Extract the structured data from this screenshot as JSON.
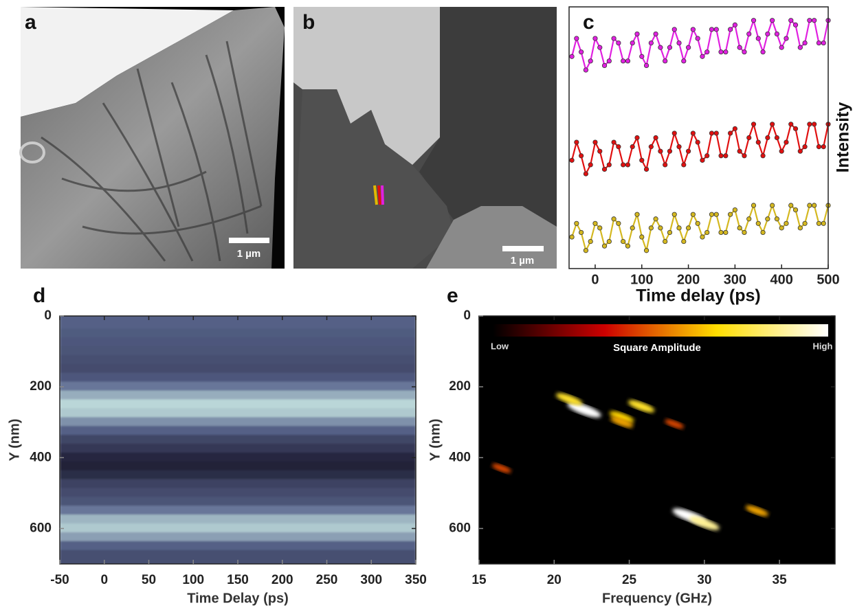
{
  "images": [
    {
      "label": "a",
      "scale_bar": "1 µm"
    },
    {
      "label": "b",
      "scale_bar": "1 µm"
    }
  ],
  "chart_data": [
    {
      "type": "line",
      "panel_label": "c",
      "x_label": "Time delay (ps)",
      "y_label": "Intensity",
      "x": [
        -50,
        -40,
        -30,
        -20,
        -10,
        0,
        10,
        20,
        30,
        40,
        50,
        60,
        70,
        80,
        90,
        100,
        110,
        120,
        130,
        140,
        150,
        160,
        170,
        180,
        190,
        200,
        210,
        220,
        230,
        240,
        250,
        260,
        270,
        280,
        290,
        300,
        310,
        320,
        330,
        340,
        350,
        360,
        370,
        380,
        390,
        400,
        410,
        420,
        430,
        440,
        450,
        460,
        470,
        480,
        490,
        500
      ],
      "xlim": [
        -56,
        500
      ],
      "xticks": [
        0,
        100,
        200,
        300,
        400,
        500
      ],
      "ylim": [
        -0.4,
        5.4
      ],
      "series": [
        {
          "color": "#e020e0",
          "values": [
            4.3,
            4.7,
            4.4,
            4.0,
            4.2,
            4.7,
            4.5,
            4.1,
            4.2,
            4.7,
            4.6,
            4.2,
            4.2,
            4.6,
            4.8,
            4.3,
            4.1,
            4.6,
            4.8,
            4.5,
            4.2,
            4.5,
            4.9,
            4.6,
            4.2,
            4.5,
            4.9,
            4.7,
            4.3,
            4.4,
            4.9,
            4.9,
            4.4,
            4.4,
            4.9,
            5.0,
            4.5,
            4.4,
            4.8,
            5.1,
            4.7,
            4.4,
            4.8,
            5.1,
            4.8,
            4.5,
            4.7,
            5.1,
            5.0,
            4.5,
            4.6,
            5.1,
            5.1,
            4.6,
            4.6,
            5.1
          ]
        },
        {
          "color": "#e01010",
          "values": [
            2.0,
            2.4,
            2.1,
            1.7,
            1.9,
            2.4,
            2.2,
            1.8,
            1.9,
            2.4,
            2.3,
            1.9,
            1.9,
            2.3,
            2.5,
            2.0,
            1.8,
            2.3,
            2.5,
            2.2,
            1.9,
            2.2,
            2.6,
            2.3,
            1.9,
            2.2,
            2.6,
            2.4,
            2.0,
            2.1,
            2.6,
            2.6,
            2.1,
            2.1,
            2.6,
            2.7,
            2.2,
            2.1,
            2.5,
            2.8,
            2.4,
            2.1,
            2.5,
            2.8,
            2.5,
            2.2,
            2.4,
            2.8,
            2.7,
            2.2,
            2.3,
            2.8,
            2.8,
            2.3,
            2.3,
            2.8
          ]
        },
        {
          "color": "#d4b820",
          "values": [
            0.3,
            0.6,
            0.4,
            0.0,
            0.2,
            0.6,
            0.5,
            0.1,
            0.2,
            0.7,
            0.6,
            0.2,
            0.1,
            0.5,
            0.8,
            0.3,
            0.0,
            0.5,
            0.7,
            0.5,
            0.2,
            0.4,
            0.8,
            0.5,
            0.2,
            0.5,
            0.8,
            0.6,
            0.3,
            0.4,
            0.8,
            0.8,
            0.4,
            0.4,
            0.8,
            0.9,
            0.5,
            0.4,
            0.7,
            1.0,
            0.6,
            0.4,
            0.7,
            1.0,
            0.7,
            0.5,
            0.6,
            1.0,
            0.9,
            0.5,
            0.6,
            1.0,
            1.0,
            0.6,
            0.6,
            1.0
          ]
        }
      ]
    },
    {
      "type": "heatmap",
      "panel_label": "d",
      "x_label": "Time Delay (ps)",
      "y_label": "Y (nm)",
      "xlim": [
        -50,
        350
      ],
      "xticks": [
        -50,
        0,
        50,
        100,
        150,
        200,
        250,
        300,
        350
      ],
      "ylim": [
        0,
        700
      ],
      "yticks": [
        0,
        200,
        400,
        600
      ],
      "invert_y": true,
      "colormap": [
        "#141428",
        "#5c6890",
        "#d2f2ea"
      ],
      "y": [
        0,
        25,
        50,
        75,
        100,
        125,
        150,
        175,
        200,
        225,
        250,
        275,
        300,
        325,
        350,
        375,
        400,
        425,
        450,
        475,
        500,
        525,
        550,
        575,
        600,
        625,
        650,
        675,
        700
      ],
      "values": [
        0.45,
        0.45,
        0.42,
        0.4,
        0.38,
        0.35,
        0.33,
        0.4,
        0.55,
        0.75,
        0.9,
        0.85,
        0.65,
        0.45,
        0.3,
        0.22,
        0.12,
        0.08,
        0.15,
        0.28,
        0.33,
        0.38,
        0.55,
        0.78,
        0.85,
        0.7,
        0.45,
        0.35,
        0.35
      ]
    },
    {
      "type": "heatmap",
      "panel_label": "e",
      "x_label": "Frequency (GHz)",
      "y_label": "Y (nm)",
      "xlim": [
        15,
        38.7
      ],
      "xticks": [
        15,
        20,
        25,
        30,
        35
      ],
      "ylim": [
        0,
        700
      ],
      "yticks": [
        0,
        200,
        400,
        600
      ],
      "invert_y": true,
      "colormap": [
        "#000000",
        "#cc0000",
        "#ffdd00",
        "#ffffff"
      ],
      "colorbar": {
        "low": "Low",
        "high": "High",
        "label": "Square Amplitude"
      },
      "spots": [
        {
          "x": 22,
          "y": 265,
          "value": 1.0
        },
        {
          "x": 21,
          "y": 235,
          "value": 0.6
        },
        {
          "x": 24.5,
          "y": 285,
          "value": 0.5
        },
        {
          "x": 24.5,
          "y": 300,
          "value": 0.4
        },
        {
          "x": 25.8,
          "y": 255,
          "value": 0.6
        },
        {
          "x": 29,
          "y": 565,
          "value": 1.0
        },
        {
          "x": 30,
          "y": 585,
          "value": 0.8
        },
        {
          "x": 33.5,
          "y": 550,
          "value": 0.4
        },
        {
          "x": 16.5,
          "y": 430,
          "value": 0.2
        },
        {
          "x": 28,
          "y": 305,
          "value": 0.2
        }
      ]
    }
  ]
}
